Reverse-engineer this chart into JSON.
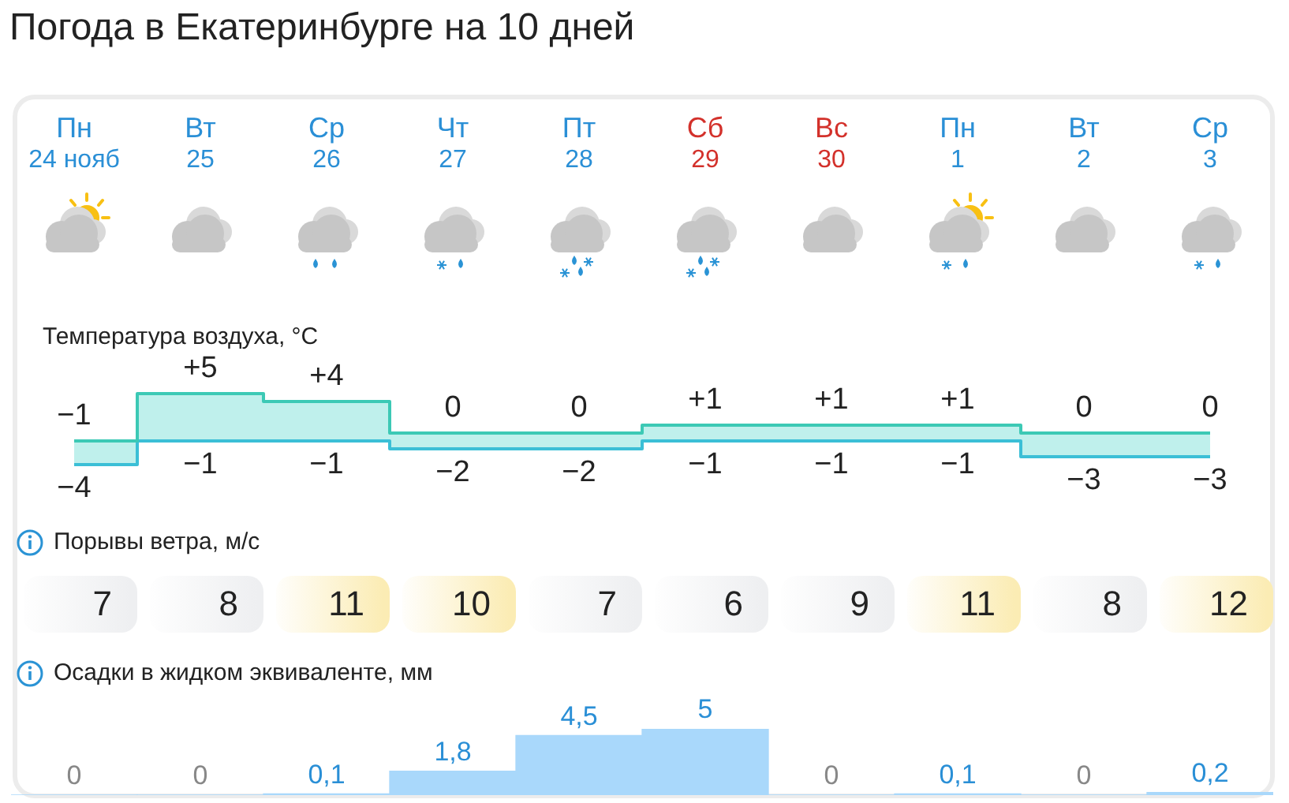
{
  "chart_data": [
    {
      "type": "step",
      "title": "Погода в Екатеринбурге на 10 дней",
      "subtitle": "Температура воздуха, °C",
      "tick_labels": "x",
      "categories": [
        "Пн 24 нояб",
        "Вт 25",
        "Ср 26",
        "Чт 27",
        "Пт 28",
        "Сб 29",
        "Вс 30",
        "Пн 1",
        "Вт 2",
        "Ср 3"
      ],
      "series": [
        {
          "color": "#3cc9b5",
          "values": [
            -1,
            5,
            4,
            0,
            0,
            1,
            1,
            1,
            0,
            0
          ],
          "value_labels": [
            "−1",
            "+5",
            "+4",
            "0",
            "0",
            "+1",
            "+1",
            "+1",
            "0",
            "0"
          ]
        },
        {
          "color": "#3bbfd6",
          "values": [
            -4,
            -1,
            -1,
            -2,
            -2,
            -1,
            -1,
            -1,
            -3,
            -3
          ],
          "value_labels": [
            "−4",
            "−1",
            "−1",
            "−2",
            "−2",
            "−1",
            "−1",
            "−1",
            "−3",
            "−3"
          ]
        }
      ]
    },
    {
      "type": "other",
      "title": "Порывы ветра, м/с",
      "data_labels": true,
      "categories": [
        null,
        null,
        null,
        null,
        null,
        null,
        null,
        null,
        null,
        null
      ],
      "values": [
        7,
        8,
        11,
        10,
        7,
        6,
        9,
        11,
        8,
        12
      ],
      "colors": [
        "#eeeff1",
        "#eeeff1",
        "#fbecb4",
        "#fbecb4",
        "#eeeff1",
        "#eeeff1",
        "#eeeff1",
        "#fbecb4",
        "#eeeff1",
        "#fbecb4"
      ]
    },
    {
      "type": "bar",
      "title": "Осадки в жидком эквиваленте, мм",
      "tick_labels": false,
      "categories": [
        null,
        null,
        null,
        null,
        null,
        null,
        null,
        null,
        null,
        null
      ],
      "values": [
        0,
        0,
        0.1,
        1.8,
        4.5,
        5,
        0,
        0.1,
        0,
        0.2
      ],
      "color": "#a9d8fb",
      "value_labels": [
        "0",
        "0",
        "0,1",
        "1,8",
        "4,5",
        "5",
        "0",
        "0,1",
        "0",
        "0,2"
      ]
    }
  ]
}
